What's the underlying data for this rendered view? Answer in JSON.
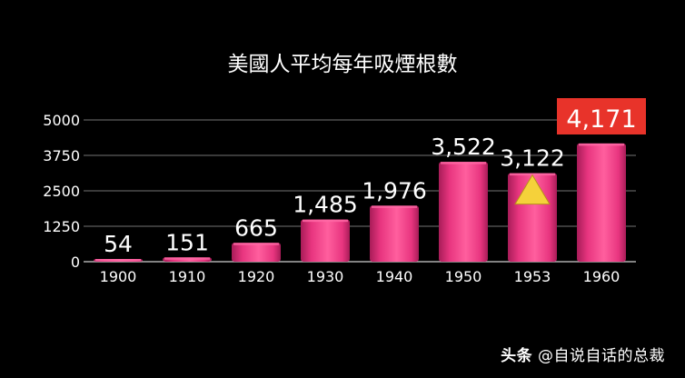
{
  "colors": {
    "background": "#000000",
    "bar": "#e8357f",
    "bar_dark": "#a81c58",
    "bar_light": "#ff6aa6",
    "highlight_box": "#e8332a",
    "triangle": "#f5d13a",
    "grid": "#9a9a9a",
    "text": "#ffffff"
  },
  "chart_data": {
    "type": "bar",
    "title": "美國人平均每年吸煙根數",
    "categories": [
      "1900",
      "1910",
      "1920",
      "1930",
      "1940",
      "1950",
      "1953",
      "1960"
    ],
    "values": [
      54,
      151,
      665,
      1485,
      1976,
      3522,
      3122,
      4171
    ],
    "data_labels": [
      "54",
      "151",
      "665",
      "1,485",
      "1,976",
      "3,522",
      "3,122",
      "4,171"
    ],
    "y_ticks": [
      "0",
      "1250",
      "2500",
      "3750",
      "5000"
    ],
    "ylim": [
      0,
      5000
    ],
    "grid": true,
    "highlight_category": "1960",
    "marker_category": "1953",
    "marker_icon": "warning-triangle-icon"
  },
  "watermark": {
    "brand": "头条",
    "handle": "@自说自话的总裁"
  }
}
